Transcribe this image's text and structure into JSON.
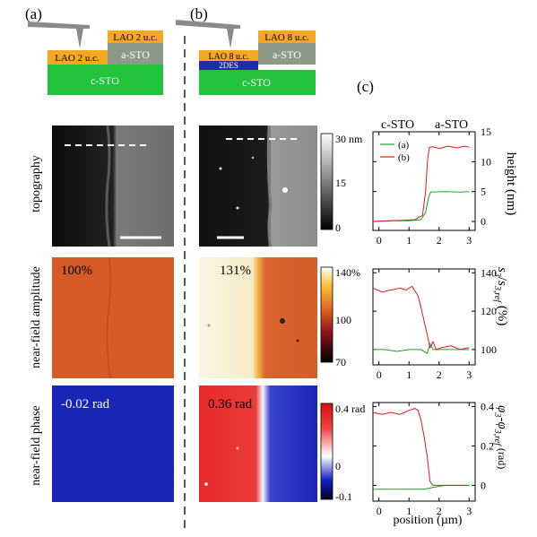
{
  "panels": {
    "a": "(a)",
    "b": "(b)",
    "c": "(c)"
  },
  "schematic_a": {
    "lao_left": "LAO 2 u.c.",
    "lao_right": "LAO 2 u.c.",
    "astO": "a-STO",
    "cSTO": "c-STO"
  },
  "schematic_b": {
    "lao_left": "LAO 8 u.c.",
    "lao_right": "LAO 8 u.c.",
    "astO": "a-STO",
    "cSTO": "c-STO",
    "twodes": "2DES"
  },
  "row_labels": {
    "topography": "topography",
    "amplitude": "near-field amplitude",
    "phase": "near-field phase"
  },
  "image_values": {
    "amp_a": "100%",
    "amp_b": "131%",
    "phase_a": "-0.02 rad",
    "phase_b": "0.36 rad"
  },
  "colorbars": {
    "topo": {
      "top": "30 nm",
      "mid": "15",
      "bottom": "0"
    },
    "amp": {
      "top": "140%",
      "mid": "100",
      "bottom": "70"
    },
    "phase": {
      "top": "0.4 rad",
      "mid": "0",
      "bottom": "-0.1"
    }
  },
  "colors": {
    "lao": "#f5a623",
    "asto": "#8d9a88",
    "csto": "#22c23a",
    "twodes": "#1e2fa0",
    "amp_a": "#d45a28",
    "phase_a": "#1826b8",
    "line_a": "#1aa22a",
    "line_b": "#e8141e"
  },
  "chart_data": [
    {
      "type": "line",
      "headers": [
        "c-STO",
        "a-STO"
      ],
      "ylabel": "height (nm)",
      "xlim": [
        -0.2,
        3.2
      ],
      "ylim": [
        -1.5,
        15
      ],
      "xticks": [
        0,
        1,
        2,
        3
      ],
      "yticks": [
        0,
        5,
        10,
        15
      ],
      "legend": [
        "(a)",
        "(b)"
      ],
      "series": [
        {
          "name": "(a)",
          "x": [
            -0.2,
            0.5,
            1.0,
            1.4,
            1.55,
            1.65,
            1.72,
            2.2,
            2.7,
            3.0
          ],
          "y": [
            0.0,
            0.1,
            0.1,
            0.3,
            1.5,
            4.0,
            4.9,
            5.0,
            4.9,
            5.0
          ]
        },
        {
          "name": "(b)",
          "x": [
            -0.2,
            0.3,
            0.8,
            1.2,
            1.45,
            1.55,
            1.62,
            1.68,
            1.8,
            2.0,
            2.3,
            2.6,
            2.85,
            3.0
          ],
          "y": [
            0.0,
            0.1,
            0.2,
            0.3,
            1.0,
            5.0,
            10.5,
            12.4,
            12.5,
            12.2,
            12.6,
            12.3,
            12.6,
            12.4
          ]
        }
      ]
    },
    {
      "type": "line",
      "ylabel": "s3/s3,ref (%)",
      "xlim": [
        -0.2,
        3.2
      ],
      "ylim": [
        92,
        142
      ],
      "xticks": [
        0,
        1,
        2,
        3
      ],
      "yticks": [
        100,
        120,
        140
      ],
      "series": [
        {
          "name": "(a)",
          "x": [
            -0.2,
            0.2,
            0.6,
            1.0,
            1.4,
            1.6,
            1.7,
            1.8,
            2.2,
            2.6,
            3.0
          ],
          "y": [
            100,
            100,
            99,
            100,
            100,
            98,
            103,
            100,
            100,
            100,
            100
          ]
        },
        {
          "name": "(b)",
          "x": [
            -0.2,
            0.1,
            0.4,
            0.7,
            0.9,
            1.1,
            1.3,
            1.4,
            1.5,
            1.6,
            1.7,
            1.8,
            1.9,
            2.1,
            2.4,
            2.7,
            3.0
          ],
          "y": [
            132,
            130,
            131,
            132,
            131,
            133,
            128,
            122,
            115,
            108,
            101,
            104,
            100,
            101,
            102,
            100,
            101
          ]
        }
      ]
    },
    {
      "type": "line",
      "ylabel": "φ3-φ3,ref (rad)",
      "xlim": [
        -0.2,
        3.2
      ],
      "ylim": [
        -0.08,
        0.42
      ],
      "xticks": [
        0,
        1,
        2,
        3
      ],
      "yticks": [
        0,
        0.2,
        0.4
      ],
      "xlabel": "position (µm)",
      "series": [
        {
          "name": "(a)",
          "x": [
            -0.2,
            0.5,
            1.0,
            1.5,
            1.8,
            2.2,
            2.6,
            3.0
          ],
          "y": [
            -0.02,
            -0.02,
            -0.02,
            -0.02,
            -0.01,
            0.0,
            0.0,
            0.0
          ]
        },
        {
          "name": "(b)",
          "x": [
            -0.2,
            0.1,
            0.4,
            0.7,
            1.0,
            1.2,
            1.3,
            1.4,
            1.5,
            1.6,
            1.7,
            1.8,
            2.2,
            2.6,
            3.0
          ],
          "y": [
            0.37,
            0.36,
            0.37,
            0.36,
            0.38,
            0.39,
            0.38,
            0.33,
            0.25,
            0.15,
            0.02,
            0.0,
            0.0,
            0.0,
            0.0
          ]
        }
      ]
    }
  ]
}
